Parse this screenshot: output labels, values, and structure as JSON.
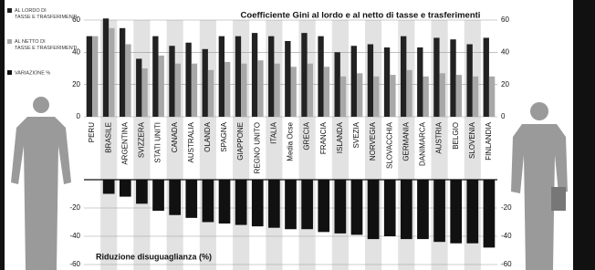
{
  "chart_data": [
    {
      "type": "bar",
      "title": "Coefficiente Gini al lordo e al netto di tasse e trasferimenti",
      "categories": [
        "PERU",
        "BRASILE",
        "ARGENTINA",
        "SVIZZERA",
        "STATI UNITI",
        "CANADA",
        "AUSTRALIA",
        "OLANDA",
        "SPAGNA",
        "GIAPPONE",
        "REGNO UNITO",
        "ITALIA",
        "Media Ocse",
        "GRECIA",
        "FRANCIA",
        "ISLANDA",
        "SVEZIA",
        "NORVEGIA",
        "SLOVACCHIA",
        "GERMANIA",
        "DANIMARCA",
        "AUSTRIA",
        "BELGIO",
        "SLOVENIA",
        "FINLANDIA"
      ],
      "series": [
        {
          "name": "AL LORDO DI TASSE E TRASFERIMENTI",
          "color": "#222222",
          "values": [
            50,
            61,
            55,
            36,
            50,
            44,
            46,
            42,
            50,
            50,
            52,
            50,
            47,
            52,
            50,
            40,
            44,
            45,
            43,
            50,
            43,
            49,
            48,
            45,
            49
          ]
        },
        {
          "name": "AL NETTO DI TASSE E TRASFERIMENTI",
          "color": "#a8a8a8",
          "values": [
            50,
            55,
            45,
            30,
            38,
            33,
            33,
            29,
            34,
            33,
            35,
            33,
            31,
            33,
            31,
            25,
            27,
            25,
            26,
            29,
            25,
            27,
            26,
            25,
            25
          ]
        }
      ],
      "ylim": [
        0,
        60
      ],
      "yticks": [
        0,
        20,
        40,
        60
      ]
    },
    {
      "type": "bar",
      "title": "Riduzione disuguaglianza (%)",
      "series": [
        {
          "name": "VARIAZIONE %",
          "color": "#111111",
          "values": [
            0,
            -10,
            -12,
            -17,
            -22,
            -25,
            -27,
            -30,
            -31,
            -32,
            -33,
            -34,
            -35,
            -35,
            -37,
            -38,
            -39,
            -42,
            -40,
            -42,
            -42,
            -44,
            -45,
            -45,
            -48
          ]
        }
      ],
      "ylim": [
        -60,
        0
      ],
      "yticks": [
        -20,
        -40,
        -60
      ]
    }
  ]
}
